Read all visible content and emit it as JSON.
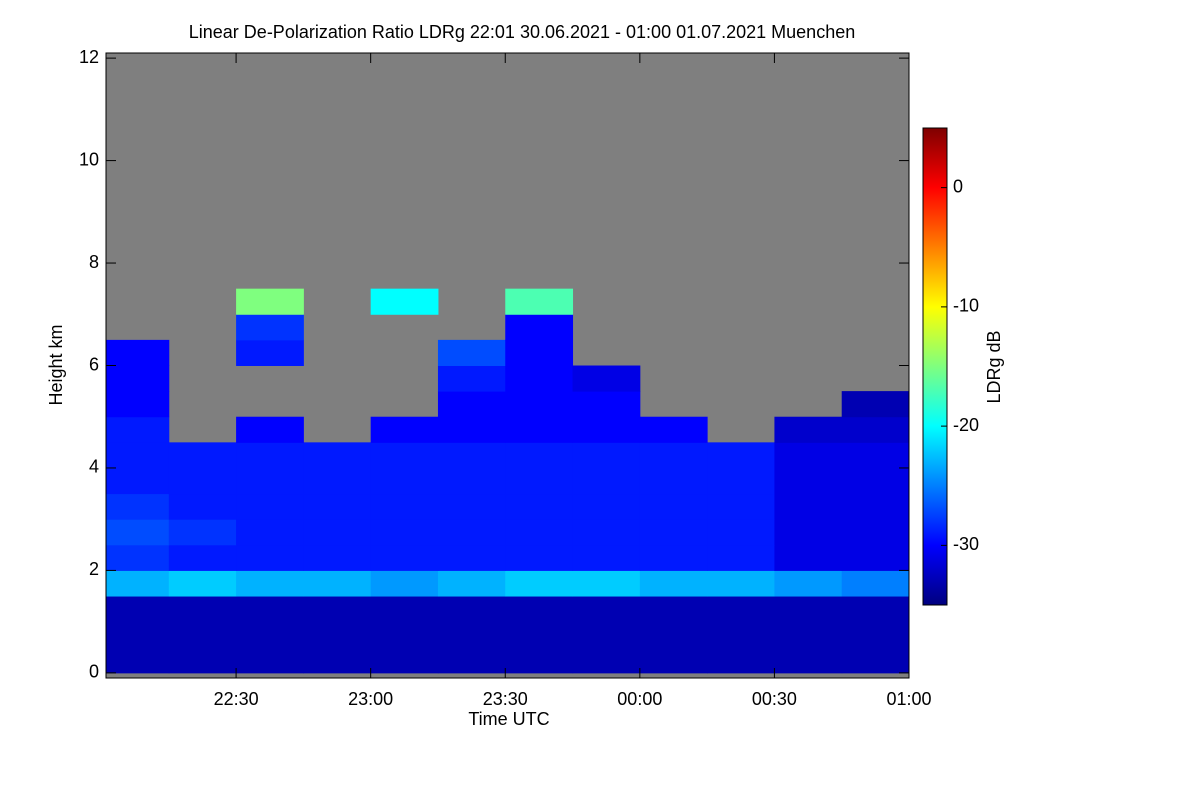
{
  "chart_data": {
    "type": "heatmap",
    "title": "Linear De-Polarization Ratio LDRg   22:01 30.06.2021 - 01:00 01.07.2021 Muenchen",
    "xlabel": "Time UTC",
    "ylabel": "Height km",
    "colorbar_label": "LDRg dB",
    "xlim": [
      22.0167,
      25.0
    ],
    "xticks": [
      {
        "value": 22.5,
        "label": "22:30"
      },
      {
        "value": 23,
        "label": "23:00"
      },
      {
        "value": 23.5,
        "label": "23:30"
      },
      {
        "value": 24,
        "label": "00:00"
      },
      {
        "value": 24.5,
        "label": "00:30"
      },
      {
        "value": 25,
        "label": "01:00"
      }
    ],
    "ylim": [
      -0.1,
      12.1
    ],
    "yticks": [
      0,
      2,
      4,
      6,
      8,
      10,
      12
    ],
    "clim": [
      -35,
      5
    ],
    "cticks": [
      0,
      -10,
      -20,
      -30
    ],
    "colors": [
      "#00007f",
      "#0000ff",
      "#007fff",
      "#00ffff",
      "#7fff7f",
      "#ffff00",
      "#ff7f00",
      "#ff0000",
      "#7f0000"
    ],
    "background": "#7f7f7f",
    "x_bins": [
      22.0167,
      22.25,
      22.5,
      22.75,
      23,
      23.25,
      23.5,
      23.75,
      24,
      24.25,
      24.5,
      24.75,
      25.0
    ],
    "y_bins": [
      0,
      0.5,
      1,
      1.5,
      2,
      2.5,
      3,
      3.5,
      4,
      4.5,
      5,
      5.5,
      6,
      6.5,
      7,
      7.5,
      8
    ],
    "values": [
      [
        -33,
        -33,
        -33,
        -33,
        -33,
        -33,
        -33,
        -33,
        -33,
        -33,
        -33,
        -33
      ],
      [
        -33,
        -33,
        -33,
        -33,
        -33,
        -33,
        -33,
        -33,
        -33,
        -33,
        -33,
        -33
      ],
      [
        -33,
        -33,
        -33,
        -33,
        -33,
        -33,
        -33,
        -33,
        -33,
        -33,
        -33,
        -33
      ],
      [
        -23,
        -22,
        -23,
        -23,
        -24,
        -23,
        -22,
        -22,
        -23,
        -23,
        -24,
        -25
      ],
      [
        -28,
        -29,
        -29,
        -29,
        -29,
        -29,
        -29,
        -29,
        -29,
        -29,
        -31,
        -31
      ],
      [
        -27,
        -28,
        -29,
        -29,
        -29,
        -29,
        -29,
        -29,
        -29,
        -29,
        -31,
        -31
      ],
      [
        -28,
        -29,
        -29,
        -29,
        -29,
        -29,
        -29,
        -29,
        -29,
        -29,
        -31,
        -31
      ],
      [
        -29,
        -29,
        -29,
        -29,
        -29,
        -29,
        -29,
        -29,
        -29,
        -29,
        -31,
        -31
      ],
      [
        -29,
        -29,
        -29,
        -29,
        -29,
        -29,
        -29,
        -29,
        -29,
        -29,
        -31,
        -31
      ],
      [
        -29,
        null,
        -30,
        null,
        -30,
        -30,
        -30,
        -30,
        -30,
        null,
        -32,
        -32
      ],
      [
        -30,
        null,
        null,
        null,
        null,
        -30,
        -30,
        -30,
        null,
        null,
        null,
        -33
      ],
      [
        -30,
        null,
        null,
        null,
        null,
        -29,
        -30,
        -31,
        null,
        null,
        null,
        null
      ],
      [
        -30,
        null,
        -29,
        null,
        null,
        -27,
        -30,
        null,
        null,
        null,
        null,
        null
      ],
      [
        null,
        null,
        -28,
        null,
        null,
        null,
        -30,
        null,
        null,
        null,
        null,
        null
      ],
      [
        null,
        null,
        -15,
        null,
        -20,
        null,
        -17,
        null,
        null,
        null,
        null,
        null
      ],
      [
        null,
        null,
        null,
        null,
        null,
        null,
        null,
        null,
        null,
        null,
        null,
        null
      ]
    ]
  }
}
